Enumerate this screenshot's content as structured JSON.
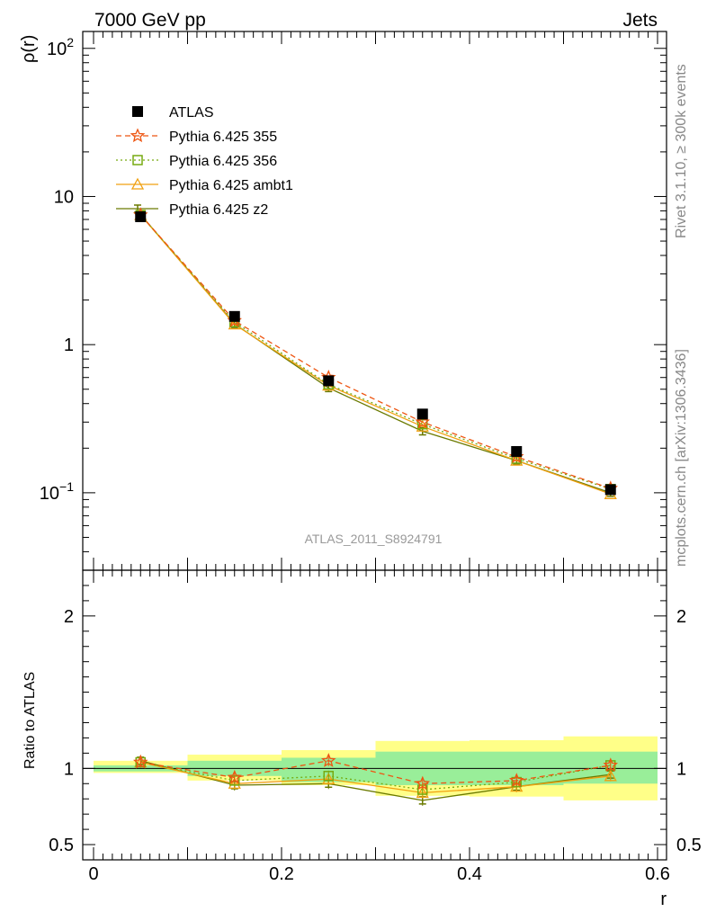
{
  "header": {
    "left": "7000 GeV pp",
    "right": "Jets"
  },
  "side_labels": {
    "rivet": "Rivet 3.1.10, ≥ 300k events",
    "mcplots": "mcplots.cern.ch [arXiv:1306.3436]"
  },
  "analysis_id": "ATLAS_2011_S8924791",
  "colors": {
    "atlas": "#000000",
    "p355": "#ee5511",
    "p356": "#77aa11",
    "ambt1": "#f0a010",
    "z2": "#6b7a00",
    "band_yellow": "#ffff88",
    "band_green": "#99ee99"
  },
  "chart_data": [
    {
      "type": "line",
      "ylabel": "ρ(r)",
      "xlabel": "r",
      "yscale": "log",
      "xlim": [
        0,
        0.6
      ],
      "ylim": [
        0.03,
        130
      ],
      "y_ticks": [
        {
          "v": 0.1,
          "base": "10",
          "exp": "−1"
        },
        {
          "v": 1,
          "label": "1"
        },
        {
          "v": 10,
          "label": "10"
        },
        {
          "v": 100,
          "base": "10",
          "exp": "2"
        }
      ],
      "x": [
        0.05,
        0.15,
        0.25,
        0.35,
        0.45,
        0.55
      ],
      "legend_position": "top-left",
      "series": [
        {
          "name": "ATLAS",
          "marker": "square-filled",
          "values": [
            7.3,
            1.55,
            0.57,
            0.34,
            0.19,
            0.105
          ]
        },
        {
          "name": "Pythia 6.425 355",
          "marker": "star",
          "linestyle": "dashed",
          "values": [
            7.5,
            1.45,
            0.6,
            0.3,
            0.175,
            0.107
          ]
        },
        {
          "name": "Pythia 6.425 356",
          "marker": "square-open",
          "linestyle": "dotted",
          "values": [
            7.5,
            1.42,
            0.54,
            0.29,
            0.17,
            0.106
          ]
        },
        {
          "name": "Pythia 6.425 ambt1",
          "marker": "triangle-open",
          "linestyle": "solid",
          "values": [
            7.5,
            1.37,
            0.53,
            0.28,
            0.165,
            0.098
          ]
        },
        {
          "name": "Pythia 6.425 z2",
          "marker": "tick",
          "linestyle": "solid",
          "values": [
            7.55,
            1.38,
            0.51,
            0.26,
            0.165,
            0.1
          ]
        }
      ]
    },
    {
      "type": "line",
      "ylabel": "Ratio to ATLAS",
      "xlabel": "r",
      "xlim": [
        0,
        0.6
      ],
      "ylim": [
        0.4,
        2.3
      ],
      "y_ticks": [
        {
          "v": 0.5,
          "label": "0.5"
        },
        {
          "v": 1,
          "label": "1"
        },
        {
          "v": 2,
          "label": "2"
        }
      ],
      "x_ticks": [
        {
          "v": 0,
          "label": "0"
        },
        {
          "v": 0.2,
          "label": "0.2"
        },
        {
          "v": 0.4,
          "label": "0.4"
        },
        {
          "v": 0.6,
          "label": "0.6"
        }
      ],
      "x": [
        0.05,
        0.15,
        0.25,
        0.35,
        0.45,
        0.55
      ],
      "bins": [
        [
          0,
          0.1
        ],
        [
          0.1,
          0.2
        ],
        [
          0.2,
          0.3
        ],
        [
          0.3,
          0.4
        ],
        [
          0.4,
          0.5
        ],
        [
          0.5,
          0.6
        ]
      ],
      "band_outer": [
        [
          0.97,
          1.05
        ],
        [
          0.92,
          1.09
        ],
        [
          0.89,
          1.12
        ],
        [
          0.82,
          1.18
        ],
        [
          0.815,
          1.185
        ],
        [
          0.79,
          1.21
        ]
      ],
      "band_inner": [
        [
          0.98,
          1.02
        ],
        [
          0.95,
          1.05
        ],
        [
          0.91,
          1.07
        ],
        [
          0.89,
          1.11
        ],
        [
          0.89,
          1.11
        ],
        [
          0.9,
          1.11
        ]
      ],
      "series": [
        {
          "name": "Pythia 6.425 355",
          "values": [
            1.04,
            0.94,
            1.05,
            0.9,
            0.92,
            1.02
          ]
        },
        {
          "name": "Pythia 6.425 356",
          "values": [
            1.04,
            0.92,
            0.95,
            0.86,
            0.91,
            1.02
          ]
        },
        {
          "name": "Pythia 6.425 ambt1",
          "values": [
            1.04,
            0.9,
            0.93,
            0.84,
            0.88,
            0.95
          ]
        },
        {
          "name": "Pythia 6.425 z2",
          "values": [
            1.05,
            0.89,
            0.9,
            0.79,
            0.88,
            0.96
          ]
        }
      ]
    }
  ]
}
